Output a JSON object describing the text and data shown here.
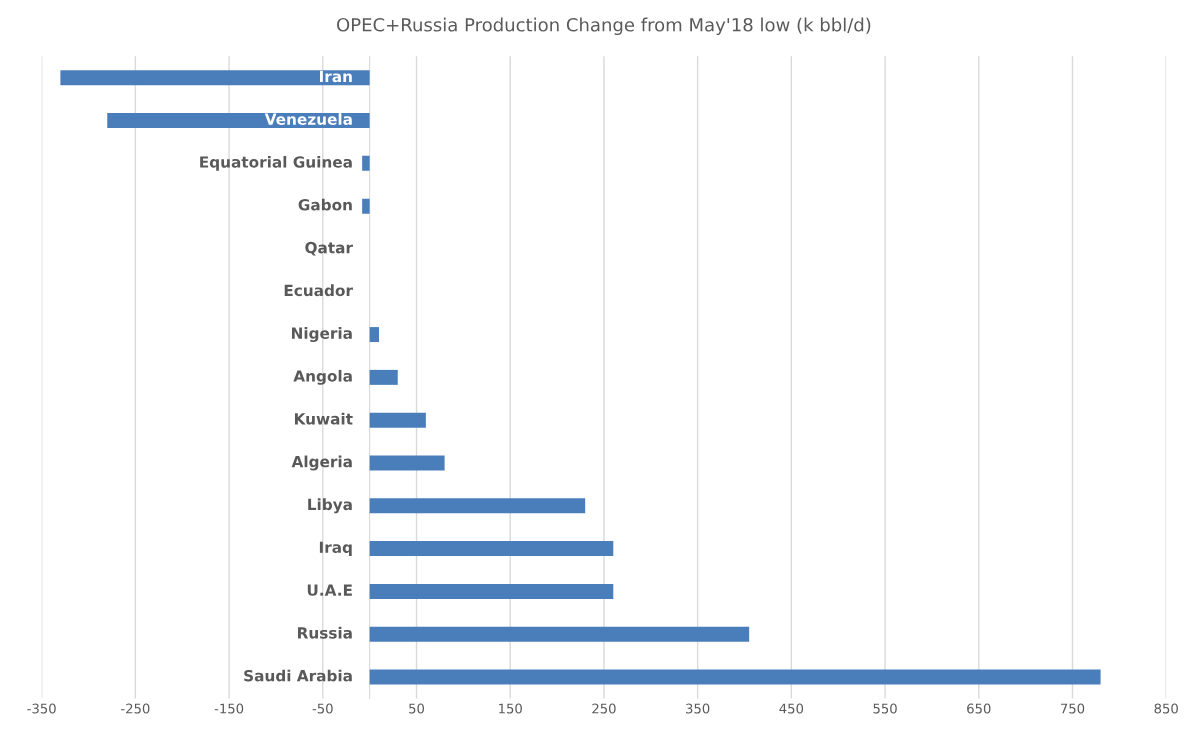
{
  "chart_data": {
    "type": "bar",
    "orientation": "horizontal",
    "title": "OPEC+Russia Production Change from May'18 low (k bbl/d)",
    "categories": [
      "Iran",
      "Venezuela",
      "Equatorial Guinea",
      "Gabon",
      "Qatar",
      "Ecuador",
      "Nigeria",
      "Angola",
      "Kuwait",
      "Algeria",
      "Libya",
      "Iraq",
      "U.A.E",
      "Russia",
      "Saudi Arabia"
    ],
    "values": [
      -330,
      -280,
      -8,
      -8,
      0,
      0,
      10,
      30,
      60,
      80,
      230,
      260,
      260,
      405,
      780
    ],
    "color": "#4a7ebb",
    "xlim": [
      -350,
      850
    ],
    "xticks": [
      -350,
      -250,
      -150,
      -50,
      50,
      150,
      250,
      350,
      450,
      550,
      650,
      750,
      850
    ],
    "grid": "x"
  }
}
